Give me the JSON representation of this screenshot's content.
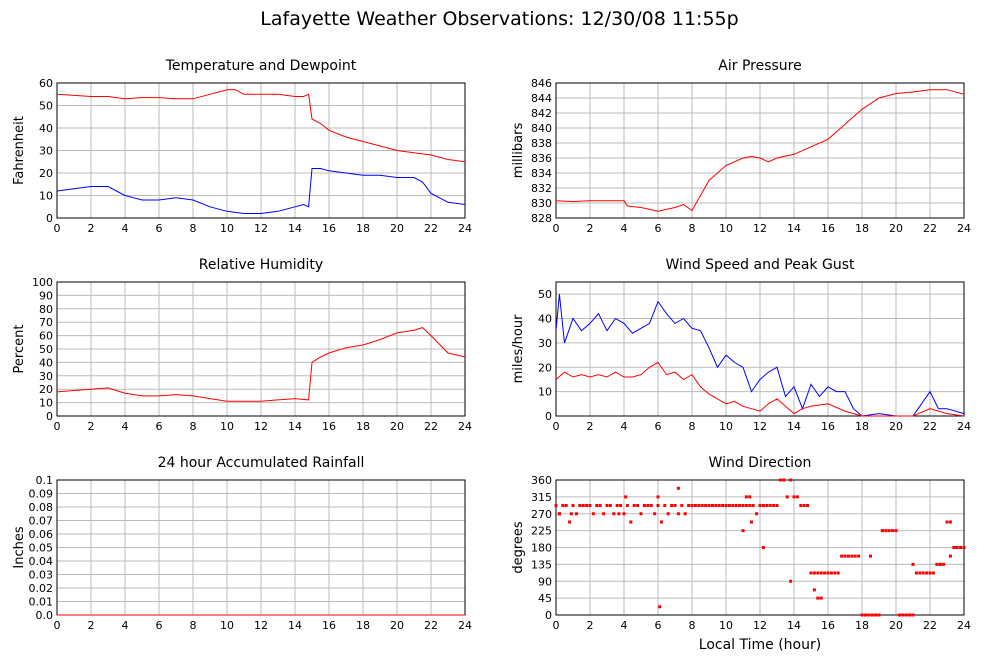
{
  "page_title": "Lafayette Weather Observations: 12/30/08 11:55p",
  "xlabel_bottom": "Local Time (hour)",
  "colors": {
    "red": "#ff0000",
    "blue": "#0000ff",
    "grid": "#bbbbbb",
    "frame": "#000000"
  },
  "chart_data": [
    {
      "id": "temp",
      "type": "line",
      "title": "Temperature and Dewpoint",
      "xlabel": "",
      "ylabel": "Fahrenheit",
      "xlim": [
        0,
        24
      ],
      "ylim": [
        0,
        60
      ],
      "xticks": [
        0,
        2,
        4,
        6,
        8,
        10,
        12,
        14,
        16,
        18,
        20,
        22,
        24
      ],
      "yticks": [
        0,
        10,
        20,
        30,
        40,
        50,
        60
      ],
      "grid": true,
      "series": [
        {
          "color": "#ff0000",
          "x": [
            0,
            1,
            2,
            3,
            4,
            5,
            6,
            7,
            8,
            9,
            10,
            10.5,
            11,
            12,
            13,
            14,
            14.5,
            14.8,
            15,
            15.5,
            16,
            17,
            18,
            19,
            20,
            21,
            22,
            23,
            24
          ],
          "y": [
            55,
            54.5,
            54,
            54,
            53,
            53.5,
            53.5,
            53,
            53,
            55,
            57,
            57,
            55,
            55,
            55,
            54,
            54,
            55,
            44,
            42,
            39,
            36,
            34,
            32,
            30,
            29,
            28,
            26,
            25
          ]
        },
        {
          "color": "#0000ff",
          "x": [
            0,
            1,
            2,
            3,
            4,
            5,
            6,
            7,
            8,
            9,
            10,
            11,
            12,
            13,
            14,
            14.5,
            14.8,
            15,
            15.5,
            16,
            17,
            18,
            19,
            20,
            21,
            21.5,
            22,
            23,
            24
          ],
          "y": [
            12,
            13,
            14,
            14,
            10,
            8,
            8,
            9,
            8,
            5,
            3,
            2,
            2,
            3,
            5,
            6,
            5,
            22,
            22,
            21,
            20,
            19,
            19,
            18,
            18,
            16,
            11,
            7,
            6
          ]
        }
      ]
    },
    {
      "id": "pressure",
      "type": "line",
      "title": "Air Pressure",
      "xlabel": "",
      "ylabel": "millibars",
      "xlim": [
        0,
        24
      ],
      "ylim": [
        828,
        846
      ],
      "xticks": [
        0,
        2,
        4,
        6,
        8,
        10,
        12,
        14,
        16,
        18,
        20,
        22,
        24
      ],
      "yticks": [
        828,
        830,
        832,
        834,
        836,
        838,
        840,
        842,
        844,
        846
      ],
      "grid": true,
      "series": [
        {
          "color": "#ff0000",
          "x": [
            0,
            1,
            2,
            3,
            4,
            4.2,
            5,
            6,
            7,
            7.5,
            8,
            8.5,
            9,
            10,
            11,
            11.5,
            12,
            12.5,
            13,
            14,
            15,
            16,
            17,
            18,
            19,
            20,
            21,
            22,
            23,
            24
          ],
          "y": [
            830.3,
            830.2,
            830.3,
            830.3,
            830.3,
            829.6,
            829.4,
            828.9,
            829.4,
            829.8,
            829,
            831,
            833,
            835,
            836,
            836.2,
            836,
            835.5,
            836,
            836.5,
            837.5,
            838.5,
            840.5,
            842.5,
            844,
            844.6,
            844.8,
            845.1,
            845.1,
            844.5
          ]
        }
      ]
    },
    {
      "id": "humidity",
      "type": "line",
      "title": "Relative Humidity",
      "xlabel": "",
      "ylabel": "Percent",
      "xlim": [
        0,
        24
      ],
      "ylim": [
        0,
        100
      ],
      "xticks": [
        0,
        2,
        4,
        6,
        8,
        10,
        12,
        14,
        16,
        18,
        20,
        22,
        24
      ],
      "yticks": [
        0,
        10,
        20,
        30,
        40,
        50,
        60,
        70,
        80,
        90,
        100
      ],
      "grid": true,
      "series": [
        {
          "color": "#ff0000",
          "x": [
            0,
            1,
            2,
            3,
            4,
            5,
            6,
            7,
            8,
            9,
            10,
            11,
            12,
            13,
            14,
            14.8,
            15,
            15.5,
            16,
            17,
            18,
            19,
            20,
            21,
            21.5,
            22,
            23,
            24
          ],
          "y": [
            18,
            19,
            20,
            21,
            17,
            15,
            15,
            16,
            15,
            13,
            11,
            11,
            11,
            12,
            13,
            12,
            40,
            44,
            47,
            51,
            53,
            57,
            62,
            64,
            66,
            60,
            47,
            44
          ]
        }
      ]
    },
    {
      "id": "wind",
      "type": "line",
      "title": "Wind Speed and Peak Gust",
      "xlabel": "",
      "ylabel": "miles/hour",
      "xlim": [
        0,
        24
      ],
      "ylim": [
        0,
        55
      ],
      "xticks": [
        0,
        2,
        4,
        6,
        8,
        10,
        12,
        14,
        16,
        18,
        20,
        22,
        24
      ],
      "yticks": [
        0,
        10,
        20,
        30,
        40,
        50
      ],
      "grid": true,
      "series": [
        {
          "color": "#0000ff",
          "x": [
            0,
            0.2,
            0.5,
            1,
            1.5,
            2,
            2.5,
            3,
            3.5,
            4,
            4.5,
            5,
            5.5,
            6,
            6.5,
            7,
            7.5,
            8,
            8.5,
            9,
            9.5,
            10,
            10.5,
            11,
            11.5,
            12,
            12.5,
            13,
            13.5,
            14,
            14.5,
            15,
            15.5,
            16,
            16.5,
            17,
            17.5,
            18,
            19,
            20,
            21,
            21.5,
            22,
            22.5,
            23,
            24
          ],
          "y": [
            35,
            50,
            30,
            40,
            35,
            38,
            42,
            35,
            40,
            38,
            34,
            36,
            38,
            47,
            42,
            38,
            40,
            36,
            35,
            28,
            20,
            25,
            22,
            20,
            10,
            15,
            18,
            20,
            8,
            12,
            3,
            13,
            8,
            12,
            10,
            10,
            3,
            0,
            1,
            0,
            0,
            5,
            10,
            3,
            3,
            1
          ]
        },
        {
          "color": "#ff0000",
          "x": [
            0,
            0.5,
            1,
            1.5,
            2,
            2.5,
            3,
            3.5,
            4,
            4.5,
            5,
            5.5,
            6,
            6.5,
            7,
            7.5,
            8,
            8.5,
            9,
            9.5,
            10,
            10.5,
            11,
            11.5,
            12,
            12.5,
            13,
            13.5,
            14,
            14.5,
            15,
            16,
            17,
            18,
            19,
            20,
            21,
            22,
            23,
            24
          ],
          "y": [
            15,
            18,
            16,
            17,
            16,
            17,
            16,
            18,
            16,
            16,
            17,
            20,
            22,
            17,
            18,
            15,
            17,
            12,
            9,
            7,
            5,
            6,
            4,
            3,
            2,
            5,
            7,
            4,
            1,
            3,
            4,
            5,
            2,
            0,
            0,
            0,
            0,
            3,
            1,
            0
          ]
        }
      ]
    },
    {
      "id": "rain",
      "type": "line",
      "title": "24 hour Accumulated Rainfall",
      "xlabel": "",
      "ylabel": "Inches",
      "xlim": [
        0,
        24
      ],
      "ylim": [
        0,
        0.1
      ],
      "xticks": [
        0,
        2,
        4,
        6,
        8,
        10,
        12,
        14,
        16,
        18,
        20,
        22,
        24
      ],
      "yticks": [
        "0.0",
        "0.01",
        "0.02",
        "0.03",
        "0.04",
        "0.05",
        "0.06",
        "0.07",
        "0.08",
        "0.09",
        "0.1"
      ],
      "grid": true,
      "series": [
        {
          "color": "#ff0000",
          "x": [
            0,
            24
          ],
          "y": [
            0,
            0
          ]
        }
      ]
    },
    {
      "id": "direction",
      "type": "scatter",
      "title": "Wind Direction",
      "xlabel": "Local Time (hour)",
      "ylabel": "degrees",
      "xlim": [
        0,
        24
      ],
      "ylim": [
        0,
        360
      ],
      "xticks": [
        0,
        2,
        4,
        6,
        8,
        10,
        12,
        14,
        16,
        18,
        20,
        22,
        24
      ],
      "yticks": [
        0,
        45,
        90,
        135,
        180,
        225,
        270,
        315,
        360
      ],
      "grid": true,
      "series": [
        {
          "color": "#ff0000",
          "x": [
            0,
            0.2,
            0.4,
            0.6,
            0.8,
            1,
            1.2,
            1.4,
            1.6,
            1.8,
            2,
            2.2,
            2.4,
            2.6,
            2.8,
            3,
            3.2,
            3.4,
            3.6,
            3.8,
            4,
            4.2,
            4.4,
            4.6,
            4.8,
            5,
            5.2,
            5.4,
            5.6,
            5.8,
            6,
            6.2,
            6.4,
            6.6,
            6.8,
            7,
            7.2,
            7.4,
            7.6,
            7.8,
            8,
            8.2,
            8.4,
            8.6,
            8.8,
            9,
            9.2,
            9.4,
            9.6,
            9.8,
            10,
            10.2,
            10.4,
            10.6,
            10.8,
            11,
            11.2,
            11.4,
            11.6,
            11.8,
            12,
            12.2,
            12.4,
            12.6,
            12.8,
            13,
            13.2,
            13.4,
            13.6,
            13.8,
            14,
            14.2,
            14.4,
            14.6,
            14.8,
            15,
            15.2,
            15.4,
            15.6,
            15.8,
            16,
            16.2,
            16.4,
            16.6,
            16.8,
            17,
            17.2,
            17.4,
            17.6,
            17.8,
            18,
            18.2,
            18.4,
            18.6,
            18.8,
            19,
            19.2,
            19.4,
            19.6,
            19.8,
            20,
            20.2,
            20.4,
            20.6,
            20.8,
            21,
            21.2,
            21.4,
            21.6,
            21.8,
            22,
            22.2,
            22.4,
            22.6,
            22.8,
            23,
            23.2,
            23.4,
            23.6,
            23.8,
            24,
            0.2,
            0.9,
            3.7,
            4.1,
            6,
            6.1,
            7.2,
            11,
            11.2,
            11.4,
            11.5,
            12.2,
            13.8,
            15.2,
            15.4,
            15.6,
            18.5,
            19.2,
            21,
            22.6,
            23.2,
            23.5
          ],
          "y": [
            292,
            270,
            292,
            292,
            248,
            292,
            270,
            292,
            292,
            292,
            292,
            270,
            292,
            292,
            270,
            292,
            292,
            270,
            292,
            292,
            270,
            292,
            248,
            292,
            292,
            270,
            292,
            292,
            292,
            270,
            292,
            248,
            292,
            270,
            292,
            292,
            270,
            292,
            270,
            292,
            292,
            292,
            292,
            292,
            292,
            292,
            292,
            292,
            292,
            292,
            292,
            292,
            292,
            292,
            292,
            292,
            292,
            292,
            292,
            270,
            292,
            292,
            292,
            292,
            292,
            292,
            360,
            360,
            315,
            360,
            315,
            315,
            292,
            292,
            292,
            112,
            112,
            112,
            112,
            112,
            112,
            112,
            112,
            112,
            157,
            157,
            157,
            157,
            157,
            157,
            0,
            0,
            0,
            0,
            0,
            0,
            225,
            225,
            225,
            225,
            225,
            0,
            0,
            0,
            0,
            0,
            112,
            112,
            112,
            112,
            112,
            112,
            135,
            135,
            135,
            248,
            248,
            180,
            180,
            180,
            180,
            270,
            270,
            270,
            315,
            315,
            22,
            338,
            225,
            315,
            315,
            248,
            180,
            90,
            67,
            45,
            45,
            157,
            225,
            135,
            135,
            157,
            180
          ]
        }
      ]
    }
  ]
}
